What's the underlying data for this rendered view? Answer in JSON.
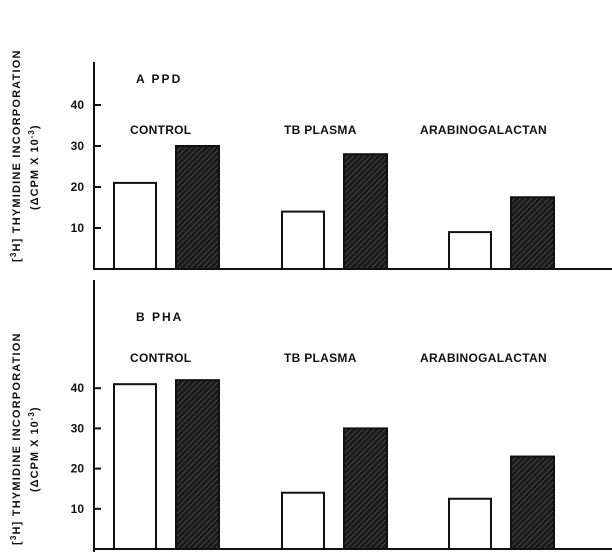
{
  "chart_data": [
    {
      "type": "bar",
      "title": "A  PPD",
      "ylabel": "[3H] THYMIDINE INCORPORATION",
      "ylabel_units": "(ΔCPM X 10-3)",
      "yticks": [
        10,
        20,
        30,
        40
      ],
      "ylim": [
        0,
        50
      ],
      "categories": [
        "CONTROL",
        "TB PLASMA",
        "ARABINOGALACTAN"
      ],
      "series": [
        {
          "values": [
            21,
            14,
            9
          ],
          "fill": "#ffffff"
        },
        {
          "values": [
            30,
            28,
            17.5
          ],
          "fill": "#1a1a1a"
        }
      ],
      "grid": false
    },
    {
      "type": "bar",
      "title": "B  PHA",
      "ylabel": "[3H] THYMIDINE INCORPORATION",
      "ylabel_units": "(ΔCPM X 10-3)",
      "yticks": [
        10,
        20,
        30,
        40
      ],
      "ylim": [
        0,
        50
      ],
      "categories": [
        "CONTROL",
        "TB PLASMA",
        "ARABINOGALACTAN"
      ],
      "series": [
        {
          "values": [
            41,
            14,
            12.5
          ],
          "fill": "#ffffff"
        },
        {
          "values": [
            42,
            30,
            23
          ],
          "fill": "#1a1a1a"
        }
      ],
      "grid": false
    }
  ]
}
